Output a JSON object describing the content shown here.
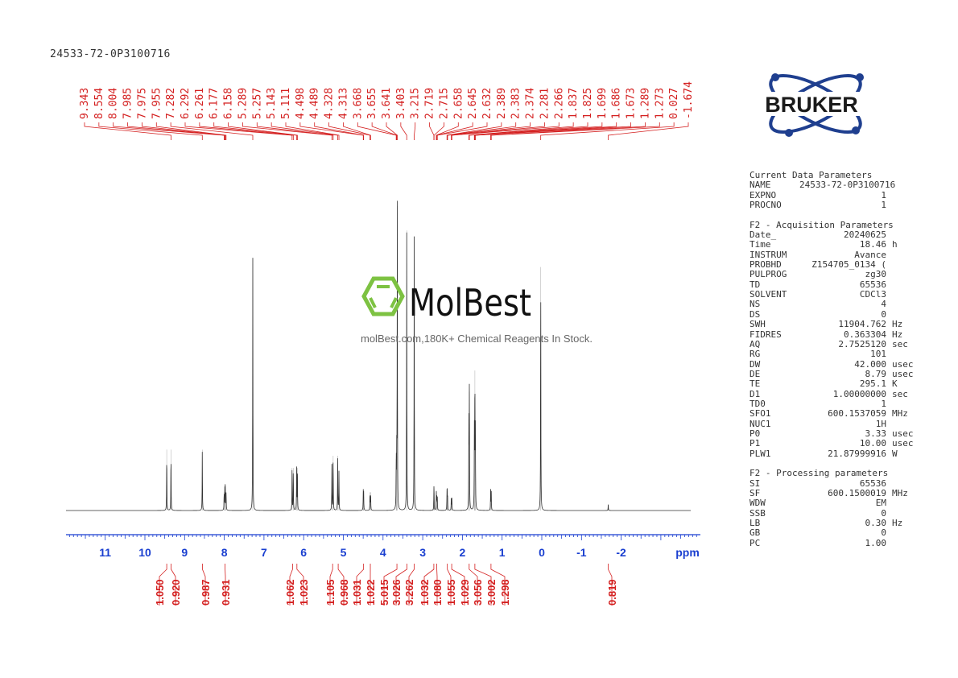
{
  "title": "24533-72-0P3100716",
  "logo": {
    "brand": "BRUKER",
    "color": "#1f3f8f"
  },
  "watermark": {
    "brand": "MolBest",
    "tagline": "molBest.com,180K+ Chemical Reagents In Stock.",
    "color": "#7dc242"
  },
  "colors": {
    "peak_labels": "#d42020",
    "axis": "#1a3fd0",
    "spectrum": "#333333"
  },
  "chart_data": {
    "type": "line",
    "title": "",
    "xlabel": "ppm",
    "xlim": [
      12,
      -4
    ],
    "x_reversed": true,
    "xticks": [
      11,
      10,
      9,
      8,
      7,
      6,
      5,
      4,
      3,
      2,
      1,
      0,
      -1,
      -2
    ],
    "xtick_labels": [
      "11",
      "10",
      "9",
      "8",
      "7",
      "6",
      "5",
      "4",
      "3",
      "2",
      "1",
      "0",
      "-1",
      "-2"
    ],
    "grid": false,
    "peak_labels": [
      "9.343",
      "8.554",
      "8.004",
      "7.985",
      "7.975",
      "7.955",
      "7.282",
      "6.292",
      "6.261",
      "6.177",
      "6.158",
      "5.289",
      "5.257",
      "5.143",
      "5.111",
      "4.498",
      "4.489",
      "4.328",
      "4.313",
      "3.668",
      "3.655",
      "3.641",
      "3.403",
      "3.215",
      "2.719",
      "2.715",
      "2.658",
      "2.645",
      "2.632",
      "2.389",
      "2.383",
      "2.374",
      "2.281",
      "2.266",
      "1.837",
      "1.825",
      "1.699",
      "1.686",
      "1.673",
      "1.289",
      "1.273",
      "0.027",
      "-1.674"
    ],
    "peaks": [
      {
        "ppm": 9.45,
        "intensity": 0.2
      },
      {
        "ppm": 9.343,
        "intensity": 0.2
      },
      {
        "ppm": 8.554,
        "intensity": 0.2
      },
      {
        "ppm": 8.004,
        "intensity": 0.06
      },
      {
        "ppm": 7.985,
        "intensity": 0.08
      },
      {
        "ppm": 7.975,
        "intensity": 0.08
      },
      {
        "ppm": 7.955,
        "intensity": 0.06
      },
      {
        "ppm": 7.282,
        "intensity": 0.83
      },
      {
        "ppm": 6.292,
        "intensity": 0.14
      },
      {
        "ppm": 6.261,
        "intensity": 0.14
      },
      {
        "ppm": 6.177,
        "intensity": 0.14
      },
      {
        "ppm": 6.158,
        "intensity": 0.14
      },
      {
        "ppm": 5.289,
        "intensity": 0.15
      },
      {
        "ppm": 5.257,
        "intensity": 0.18
      },
      {
        "ppm": 5.143,
        "intensity": 0.18
      },
      {
        "ppm": 5.111,
        "intensity": 0.13
      },
      {
        "ppm": 4.498,
        "intensity": 0.06
      },
      {
        "ppm": 4.489,
        "intensity": 0.06
      },
      {
        "ppm": 4.328,
        "intensity": 0.06
      },
      {
        "ppm": 4.313,
        "intensity": 0.06
      },
      {
        "ppm": 3.668,
        "intensity": 0.17
      },
      {
        "ppm": 3.655,
        "intensity": 0.18
      },
      {
        "ppm": 3.641,
        "intensity": 1.0
      },
      {
        "ppm": 3.403,
        "intensity": 0.92
      },
      {
        "ppm": 3.215,
        "intensity": 0.9
      },
      {
        "ppm": 2.719,
        "intensity": 0.05
      },
      {
        "ppm": 2.715,
        "intensity": 0.05
      },
      {
        "ppm": 2.658,
        "intensity": 0.06
      },
      {
        "ppm": 2.645,
        "intensity": 0.05
      },
      {
        "ppm": 2.632,
        "intensity": 0.04
      },
      {
        "ppm": 2.389,
        "intensity": 0.05
      },
      {
        "ppm": 2.383,
        "intensity": 0.05
      },
      {
        "ppm": 2.374,
        "intensity": 0.04
      },
      {
        "ppm": 2.281,
        "intensity": 0.04
      },
      {
        "ppm": 2.266,
        "intensity": 0.04
      },
      {
        "ppm": 1.837,
        "intensity": 0.3
      },
      {
        "ppm": 1.825,
        "intensity": 0.39
      },
      {
        "ppm": 1.699,
        "intensity": 0.25
      },
      {
        "ppm": 1.686,
        "intensity": 0.46
      },
      {
        "ppm": 1.673,
        "intensity": 0.25
      },
      {
        "ppm": 1.289,
        "intensity": 0.07
      },
      {
        "ppm": 1.273,
        "intensity": 0.06
      },
      {
        "ppm": 0.027,
        "intensity": 0.8
      },
      {
        "ppm": -1.674,
        "intensity": 0.02
      }
    ],
    "integrals": [
      {
        "ppm": 9.45,
        "value": "1.050"
      },
      {
        "ppm": 9.34,
        "value": "0.920"
      },
      {
        "ppm": 8.55,
        "value": "0.987"
      },
      {
        "ppm": 7.98,
        "value": "0.931"
      },
      {
        "ppm": 6.28,
        "value": "1.062"
      },
      {
        "ppm": 6.17,
        "value": "1.023"
      },
      {
        "ppm": 5.27,
        "value": "1.105"
      },
      {
        "ppm": 5.13,
        "value": "0.968"
      },
      {
        "ppm": 4.49,
        "value": "1.031"
      },
      {
        "ppm": 4.32,
        "value": "1.022"
      },
      {
        "ppm": 3.65,
        "value": "5.015"
      },
      {
        "ppm": 3.4,
        "value": "3.026"
      },
      {
        "ppm": 3.215,
        "value": "3.262"
      },
      {
        "ppm": 2.72,
        "value": "1.032"
      },
      {
        "ppm": 2.645,
        "value": "1.080"
      },
      {
        "ppm": 2.38,
        "value": "1.055"
      },
      {
        "ppm": 2.27,
        "value": "1.029"
      },
      {
        "ppm": 1.83,
        "value": "3.056"
      },
      {
        "ppm": 1.686,
        "value": "3.002"
      },
      {
        "ppm": 1.28,
        "value": "1.298"
      },
      {
        "ppm": -1.674,
        "value": "0.819"
      }
    ]
  },
  "params": {
    "sections": [
      {
        "heading": "Current Data Parameters",
        "rows": [
          {
            "key": "NAME",
            "value": "24533-72-0P3100716",
            "unit": ""
          },
          {
            "key": "EXPNO",
            "value": "1",
            "unit": ""
          },
          {
            "key": "PROCNO",
            "value": "1",
            "unit": ""
          }
        ]
      },
      {
        "heading": "F2 - Acquisition Parameters",
        "rows": [
          {
            "key": "Date_",
            "value": "20240625",
            "unit": ""
          },
          {
            "key": "Time",
            "value": "18.46",
            "unit": "h"
          },
          {
            "key": "INSTRUM",
            "value": "Avance",
            "unit": ""
          },
          {
            "key": "PROBHD",
            "value": "Z154705_0134 (",
            "unit": ""
          },
          {
            "key": "PULPROG",
            "value": "zg30",
            "unit": ""
          },
          {
            "key": "TD",
            "value": "65536",
            "unit": ""
          },
          {
            "key": "SOLVENT",
            "value": "CDCl3",
            "unit": ""
          },
          {
            "key": "NS",
            "value": "4",
            "unit": ""
          },
          {
            "key": "DS",
            "value": "0",
            "unit": ""
          },
          {
            "key": "SWH",
            "value": "11904.762",
            "unit": "Hz"
          },
          {
            "key": "FIDRES",
            "value": "0.363304",
            "unit": "Hz"
          },
          {
            "key": "AQ",
            "value": "2.7525120",
            "unit": "sec"
          },
          {
            "key": "RG",
            "value": "101",
            "unit": ""
          },
          {
            "key": "DW",
            "value": "42.000",
            "unit": "usec"
          },
          {
            "key": "DE",
            "value": "8.79",
            "unit": "usec"
          },
          {
            "key": "TE",
            "value": "295.1",
            "unit": "K"
          },
          {
            "key": "D1",
            "value": "1.00000000",
            "unit": "sec"
          },
          {
            "key": "TD0",
            "value": "1",
            "unit": ""
          },
          {
            "key": "SFO1",
            "value": "600.1537059",
            "unit": "MHz"
          },
          {
            "key": "NUC1",
            "value": "1H",
            "unit": ""
          },
          {
            "key": "P0",
            "value": "3.33",
            "unit": "usec"
          },
          {
            "key": "P1",
            "value": "10.00",
            "unit": "usec"
          },
          {
            "key": "PLW1",
            "value": "21.87999916",
            "unit": "W"
          }
        ]
      },
      {
        "heading": "F2 - Processing parameters",
        "rows": [
          {
            "key": "SI",
            "value": "65536",
            "unit": ""
          },
          {
            "key": "SF",
            "value": "600.1500019",
            "unit": "MHz"
          },
          {
            "key": "WDW",
            "value": "EM",
            "unit": ""
          },
          {
            "key": "SSB",
            "value": "0",
            "unit": ""
          },
          {
            "key": "LB",
            "value": "0.30",
            "unit": "Hz"
          },
          {
            "key": "GB",
            "value": "0",
            "unit": ""
          },
          {
            "key": "PC",
            "value": "1.00",
            "unit": ""
          }
        ]
      }
    ]
  }
}
